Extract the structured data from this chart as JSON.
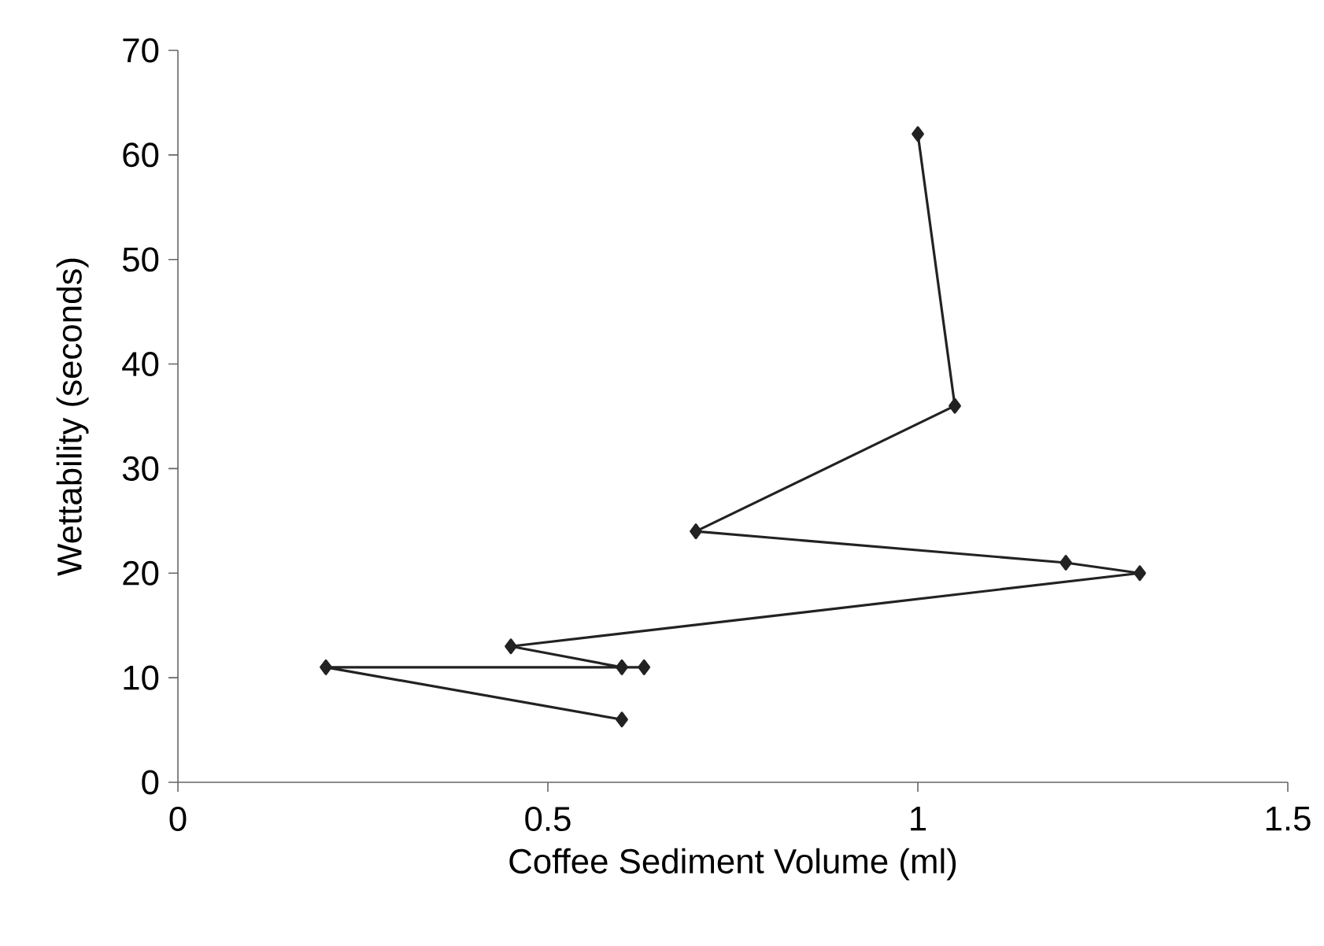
{
  "chart_data": {
    "type": "line",
    "xlabel": "Coffee Sediment Volume (ml)",
    "ylabel": "Wettability (seconds)",
    "series": [
      {
        "color": "#222222",
        "x": [
          0.6,
          0.2,
          0.63,
          0.6,
          0.45,
          1.3,
          1.2,
          0.7,
          1.05,
          1.0
        ],
        "values": [
          6,
          11,
          11,
          11,
          13,
          20,
          21,
          24,
          36,
          62
        ]
      }
    ],
    "xlim": [
      0,
      1.5
    ],
    "xticks": [
      0,
      0.5,
      1,
      1.5
    ],
    "ylim": [
      0,
      70
    ],
    "yticks": [
      0,
      10,
      20,
      30,
      40,
      50,
      60,
      70
    ],
    "marker": "diamond",
    "line_style": "solid"
  }
}
